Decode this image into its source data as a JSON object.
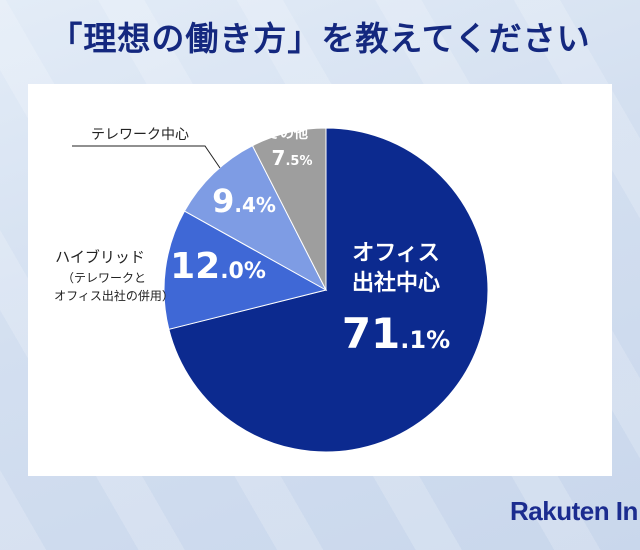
{
  "title": "「理想の働き方」を教えてください",
  "brand": "Rakuten In",
  "chart_data": {
    "type": "pie",
    "title": "「理想の働き方」を教えてください",
    "start_angle": "12 o'clock",
    "direction": "clockwise",
    "slices": [
      {
        "label_lines": [
          "オフィス",
          "出社中心"
        ],
        "value": 71.1,
        "num": "71",
        "dec": ".1",
        "unit": "%",
        "color": "#0c2a8f"
      },
      {
        "label_lines": [
          "ハイブリッド",
          "（テレワークと",
          "オフィス出社の併用）"
        ],
        "value": 12.0,
        "num": "12",
        "dec": ".0",
        "unit": "%",
        "color": "#3f68d6"
      },
      {
        "label_lines": [
          "テレワーク中心"
        ],
        "value": 9.4,
        "num": "9",
        "dec": ".4",
        "unit": "%",
        "color": "#7e9ce4"
      },
      {
        "label_lines": [
          "その他"
        ],
        "value": 7.5,
        "num": "7",
        "dec": ".5",
        "unit": "%",
        "color": "#9e9e9e"
      }
    ]
  }
}
